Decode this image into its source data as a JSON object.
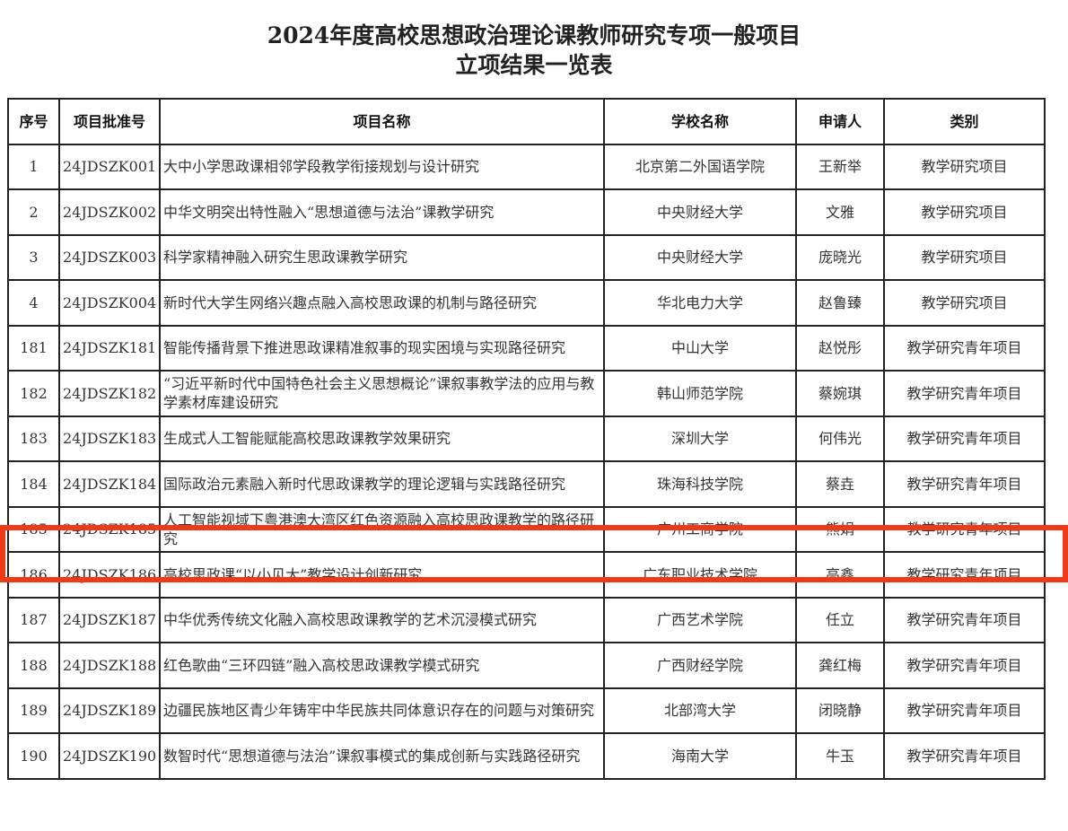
{
  "title_line1": "2024年度高校思想政治理论课教师研究专项一般项目",
  "title_line2": "立项结果一览表",
  "headers": [
    "序号",
    "项目批准号",
    "项目名称",
    "学校名称",
    "申请人",
    "类别"
  ],
  "highlight_color": "#f03a17",
  "highlighted_row": "185",
  "rows": [
    [
      "1",
      "24JDSZK001",
      "大中小学思政课相邻学段教学衔接规划与设计研究",
      "北京第二外国语学院",
      "王新举",
      "教学研究项目"
    ],
    [
      "2",
      "24JDSZK002",
      "中华文明突出特性融入“思想道德与法治”课教学研究",
      "中央财经大学",
      "文雅",
      "教学研究项目"
    ],
    [
      "3",
      "24JDSZK003",
      "科学家精神融入研究生思政课教学研究",
      "中央财经大学",
      "庞晓光",
      "教学研究项目"
    ],
    [
      "4",
      "24JDSZK004",
      "新时代大学生网络兴趣点融入高校思政课的机制与路径研究",
      "华北电力大学",
      "赵鲁臻",
      "教学研究项目"
    ],
    [
      "181",
      "24JDSZK181",
      "智能传播背景下推进思政课精准叙事的现实困境与实现路径研究",
      "中山大学",
      "赵悦彤",
      "教学研究青年项目"
    ],
    [
      "182",
      "24JDSZK182",
      "“习近平新时代中国特色社会主义思想概论”课叙事教学法的应用与教学素材库建设研究",
      "韩山师范学院",
      "蔡婉琪",
      "教学研究青年项目"
    ],
    [
      "183",
      "24JDSZK183",
      "生成式人工智能赋能高校思政课教学效果研究",
      "深圳大学",
      "何伟光",
      "教学研究青年项目"
    ],
    [
      "184",
      "24JDSZK184",
      "国际政治元素融入新时代思政课教学的理论逻辑与实践路径研究",
      "珠海科技学院",
      "蔡垚",
      "教学研究青年项目"
    ],
    [
      "185",
      "24JDSZK185",
      "人工智能视域下粤港澳大湾区红色资源融入高校思政课教学的路径研究",
      "广州工商学院",
      "熊娟",
      "教学研究青年项目"
    ],
    [
      "186",
      "24JDSZK186",
      "高校思政课“以小见大”教学设计创新研究",
      "广东职业技术学院",
      "高鑫",
      "教学研究青年项目"
    ],
    [
      "187",
      "24JDSZK187",
      "中华优秀传统文化融入高校思政课教学的艺术沉浸模式研究",
      "广西艺术学院",
      "任立",
      "教学研究青年项目"
    ],
    [
      "188",
      "24JDSZK188",
      "红色歌曲“三环四链”融入高校思政课教学模式研究",
      "广西财经学院",
      "龚红梅",
      "教学研究青年项目"
    ],
    [
      "189",
      "24JDSZK189",
      "边疆民族地区青少年铸牢中华民族共同体意识存在的问题与对策研究",
      "北部湾大学",
      "闭晓静",
      "教学研究青年项目"
    ],
    [
      "190",
      "24JDSZK190",
      "数智时代“思想道德与法治”课叙事模式的集成创新与实践路径研究",
      "海南大学",
      "牛玉",
      "教学研究青年项目"
    ]
  ]
}
